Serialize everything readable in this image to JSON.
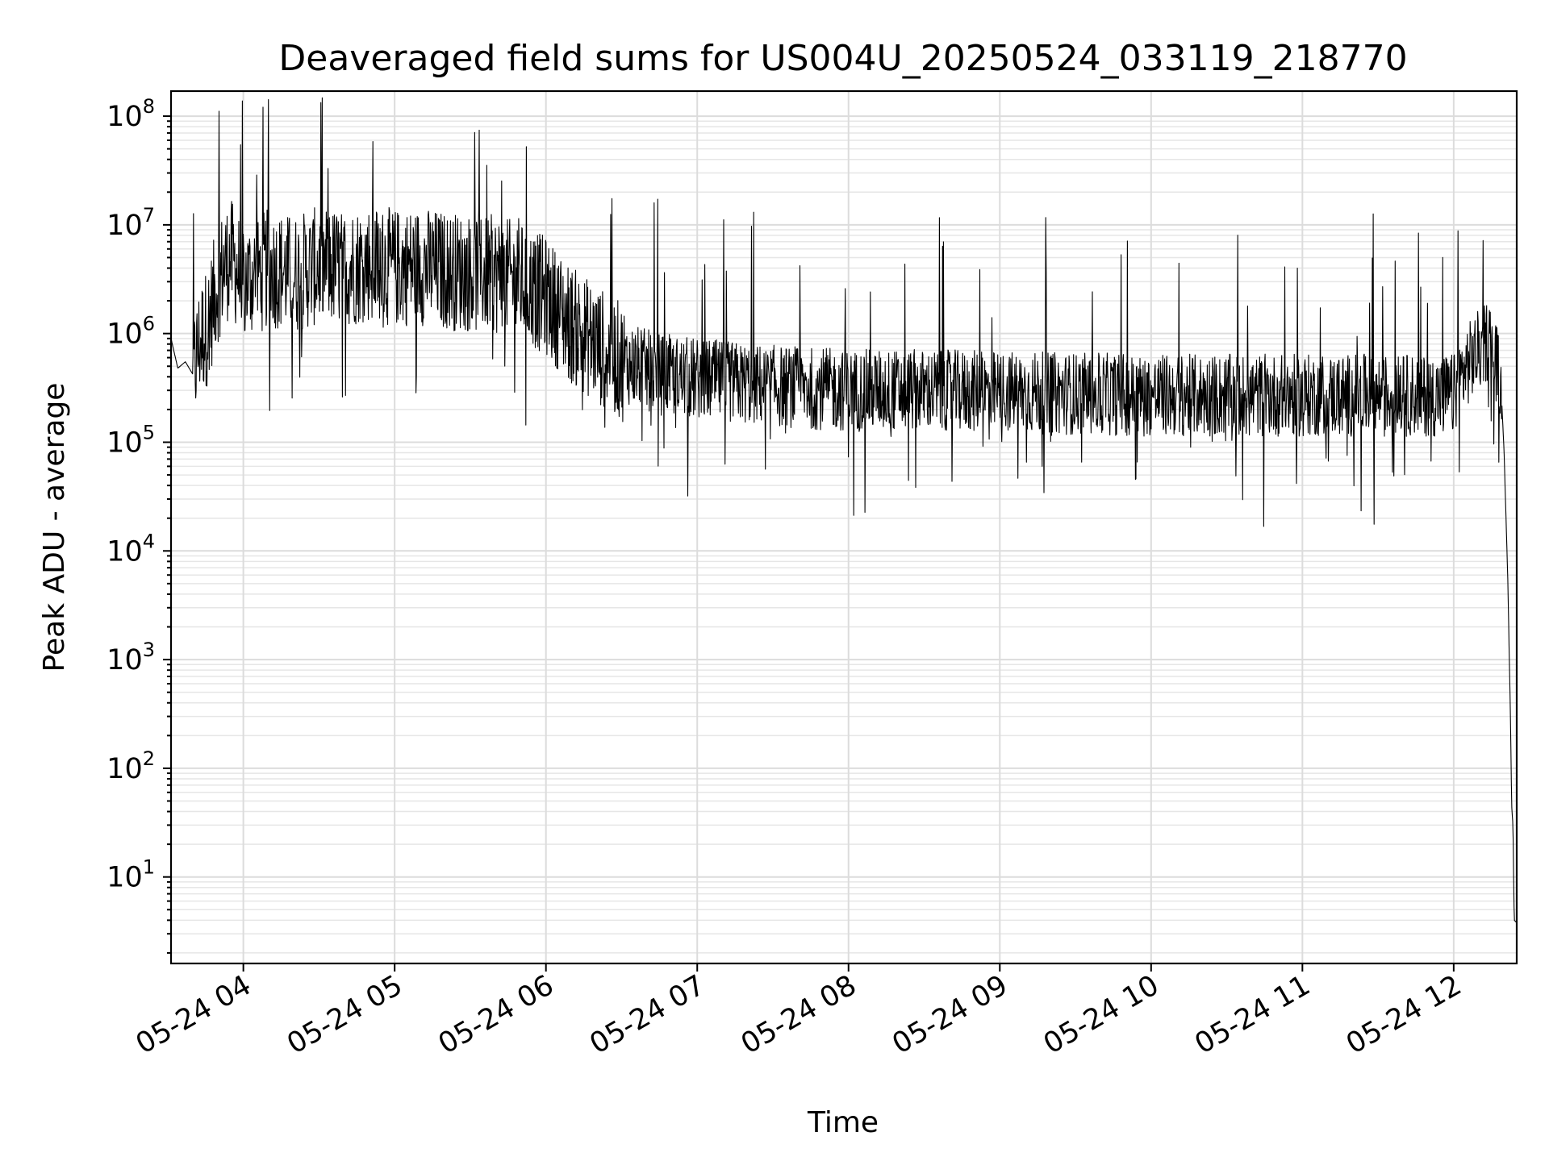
{
  "chart_data": {
    "type": "line",
    "title": "Deaveraged field sums for US004U_20250524_033119_218770",
    "xlabel": "Time",
    "ylabel": "Peak ADU - average",
    "xscale": "time",
    "yscale": "log",
    "xlim": [
      "2025-05-24T03:31:19",
      "2025-05-24T12:25:00"
    ],
    "ylim": [
      1.6,
      170000000
    ],
    "grid": true,
    "line_color": "#000000",
    "x_ticks": [
      {
        "value": "2025-05-24T04:00:00",
        "label": "05-24 04"
      },
      {
        "value": "2025-05-24T05:00:00",
        "label": "05-24 05"
      },
      {
        "value": "2025-05-24T06:00:00",
        "label": "05-24 06"
      },
      {
        "value": "2025-05-24T07:00:00",
        "label": "05-24 07"
      },
      {
        "value": "2025-05-24T08:00:00",
        "label": "05-24 08"
      },
      {
        "value": "2025-05-24T09:00:00",
        "label": "05-24 09"
      },
      {
        "value": "2025-05-24T10:00:00",
        "label": "05-24 10"
      },
      {
        "value": "2025-05-24T11:00:00",
        "label": "05-24 11"
      },
      {
        "value": "2025-05-24T12:00:00",
        "label": "05-24 12"
      }
    ],
    "y_ticks": [
      {
        "value": 10,
        "base": "10",
        "exp": "1"
      },
      {
        "value": 100,
        "base": "10",
        "exp": "2"
      },
      {
        "value": 1000,
        "base": "10",
        "exp": "3"
      },
      {
        "value": 10000,
        "base": "10",
        "exp": "4"
      },
      {
        "value": 100000,
        "base": "10",
        "exp": "5"
      },
      {
        "value": 1000000,
        "base": "10",
        "exp": "6"
      },
      {
        "value": 10000000,
        "base": "10",
        "exp": "7"
      },
      {
        "value": 100000000,
        "base": "10",
        "exp": "8"
      }
    ],
    "series": [
      {
        "points": [
          [
            "2025-05-24T03:31:19",
            900000
          ],
          [
            "2025-05-24T03:34:00",
            480000
          ],
          [
            "2025-05-24T03:37:00",
            550000
          ],
          [
            "2025-05-24T03:40:00",
            420000
          ],
          [
            "2025-05-24T03:43:00",
            900000
          ],
          [
            "2025-05-24T03:46:00",
            1200000
          ],
          [
            "2025-05-24T03:49:00",
            2500000
          ],
          [
            "2025-05-24T03:52:00",
            4000000
          ],
          [
            "2025-05-24T03:55:00",
            5000000
          ],
          [
            "2025-05-24T04:00:00",
            3000000
          ],
          [
            "2025-05-24T04:10:00",
            4000000
          ],
          [
            "2025-05-24T04:20:00",
            3500000
          ],
          [
            "2025-05-24T04:30:00",
            4200000
          ],
          [
            "2025-05-24T04:40:00",
            4000000
          ],
          [
            "2025-05-24T04:50:00",
            4500000
          ],
          [
            "2025-05-24T05:00:00",
            4000000
          ],
          [
            "2025-05-24T05:10:00",
            4200000
          ],
          [
            "2025-05-24T05:20:00",
            3800000
          ],
          [
            "2025-05-24T05:30:00",
            3600000
          ],
          [
            "2025-05-24T05:40:00",
            3500000
          ],
          [
            "2025-05-24T05:50:00",
            3000000
          ],
          [
            "2025-05-24T06:00:00",
            2200000
          ],
          [
            "2025-05-24T06:10:00",
            1200000
          ],
          [
            "2025-05-24T06:20:00",
            800000
          ],
          [
            "2025-05-24T06:30:00",
            550000
          ],
          [
            "2025-05-24T06:45:00",
            420000
          ],
          [
            "2025-05-24T07:00:00",
            380000
          ],
          [
            "2025-05-24T07:30:00",
            330000
          ],
          [
            "2025-05-24T08:00:00",
            300000
          ],
          [
            "2025-05-24T08:30:00",
            300000
          ],
          [
            "2025-05-24T09:00:00",
            290000
          ],
          [
            "2025-05-24T09:30:00",
            280000
          ],
          [
            "2025-05-24T10:00:00",
            270000
          ],
          [
            "2025-05-24T10:30:00",
            270000
          ],
          [
            "2025-05-24T11:00:00",
            270000
          ],
          [
            "2025-05-24T11:30:00",
            270000
          ],
          [
            "2025-05-24T12:00:00",
            270000
          ],
          [
            "2025-05-24T12:05:00",
            500000
          ],
          [
            "2025-05-24T12:10:00",
            700000
          ],
          [
            "2025-05-24T12:14:00",
            900000
          ],
          [
            "2025-05-24T12:17:00",
            550000
          ],
          [
            "2025-05-24T12:19:00",
            250000
          ],
          [
            "2025-05-24T12:20:00",
            80000
          ],
          [
            "2025-05-24T12:21:30",
            5000
          ],
          [
            "2025-05-24T12:22:30",
            300
          ],
          [
            "2025-05-24T12:23:00",
            45
          ],
          [
            "2025-05-24T12:23:30",
            30
          ],
          [
            "2025-05-24T12:24:00",
            4
          ],
          [
            "2025-05-24T12:25:00",
            3.8
          ]
        ]
      }
    ]
  }
}
